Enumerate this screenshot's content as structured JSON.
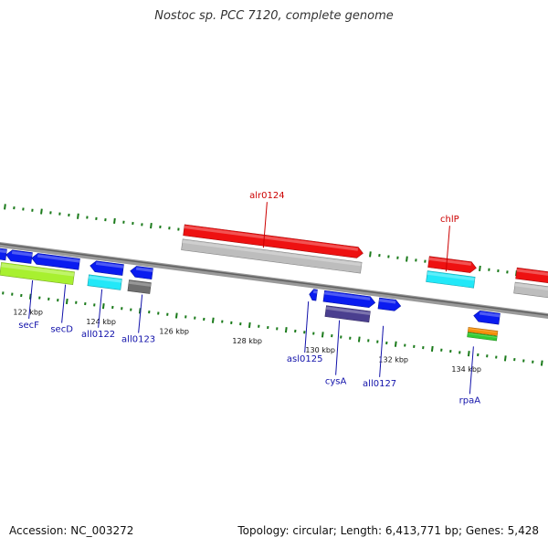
{
  "title": "Nostoc sp. PCC 7120, complete genome",
  "footer": {
    "accession": "Accession: NC_003272",
    "topology": "Topology: circular; Length: 6,413,771 bp; Genes: 5,428"
  },
  "axis": {
    "start_kbp": 121,
    "end_kbp": 136,
    "tick_labels": [
      "122 kbp",
      "124 kbp",
      "126 kbp",
      "128 kbp",
      "130 kbp",
      "132 kbp",
      "134 kbp"
    ]
  },
  "colors": {
    "blue": "#0a1cf0",
    "red": "#ee1111",
    "cyan": "#22e8f8",
    "gray": "#bdbdbd",
    "lime": "#a8f030",
    "darkgray": "#6f6f6f",
    "purple": "#4a3f8f",
    "orange": "#f5900a",
    "green": "#33cc33",
    "label_blue": "#1111aa",
    "label_red": "#cc0000",
    "tick_green": "#1a7a1a"
  },
  "genes": [
    {
      "name": "",
      "start": 120.7,
      "end": 121.2,
      "track": 0,
      "dir": "left",
      "color": "blue"
    },
    {
      "name": "",
      "start": 121.2,
      "end": 121.9,
      "track": 0,
      "dir": "left",
      "color": "blue"
    },
    {
      "name": "",
      "start": 121.9,
      "end": 123.2,
      "track": 0,
      "dir": "left",
      "color": "blue"
    },
    {
      "name": "",
      "start": 121.1,
      "end": 123.1,
      "track": 1,
      "dir": "none",
      "color": "lime",
      "tall": true
    },
    {
      "name": "",
      "start": 123.5,
      "end": 124.4,
      "track": 0,
      "dir": "left",
      "color": "blue"
    },
    {
      "name": "",
      "start": 123.5,
      "end": 124.4,
      "track": 1,
      "dir": "none",
      "color": "cyan"
    },
    {
      "name": "",
      "start": 124.6,
      "end": 125.2,
      "track": 0,
      "dir": "left",
      "color": "blue"
    },
    {
      "name": "",
      "start": 124.6,
      "end": 125.2,
      "track": 1,
      "dir": "none",
      "color": "darkgray"
    },
    {
      "name": "",
      "start": 125.9,
      "end": 130.8,
      "track": -1,
      "dir": "none",
      "color": "gray"
    },
    {
      "name": "",
      "start": 125.9,
      "end": 130.8,
      "track": -2,
      "dir": "right",
      "color": "red"
    },
    {
      "name": "",
      "start": 129.5,
      "end": 129.7,
      "track": 0,
      "dir": "left",
      "color": "blue"
    },
    {
      "name": "",
      "start": 129.9,
      "end": 131.3,
      "track": 0,
      "dir": "right",
      "color": "blue"
    },
    {
      "name": "",
      "start": 130.0,
      "end": 131.2,
      "track": 1,
      "dir": "none",
      "color": "purple"
    },
    {
      "name": "",
      "start": 131.4,
      "end": 132.0,
      "track": 0,
      "dir": "right",
      "color": "blue"
    },
    {
      "name": "",
      "start": 132.6,
      "end": 133.9,
      "track": -1,
      "dir": "none",
      "color": "cyan"
    },
    {
      "name": "",
      "start": 132.6,
      "end": 133.9,
      "track": -2,
      "dir": "right",
      "color": "red"
    },
    {
      "name": "",
      "start": 134.0,
      "end": 134.7,
      "track": 0,
      "dir": "left",
      "color": "blue"
    },
    {
      "name": "",
      "start": 133.9,
      "end": 134.7,
      "track": 1,
      "dir": "none",
      "color": "orange",
      "thin": true
    },
    {
      "name": "",
      "start": 133.9,
      "end": 134.7,
      "track": 1.35,
      "dir": "none",
      "color": "green",
      "thin": true
    },
    {
      "name": "",
      "start": 135.0,
      "end": 136.3,
      "track": -1,
      "dir": "none",
      "color": "gray"
    },
    {
      "name": "",
      "start": 135.0,
      "end": 136.3,
      "track": -2,
      "dir": "right",
      "color": "red"
    }
  ],
  "labels": [
    {
      "text": "secF",
      "kbp": 122.0,
      "track": 1,
      "side": "below",
      "drop": 42,
      "color": "label_blue"
    },
    {
      "text": "secD",
      "kbp": 122.9,
      "track": 1,
      "side": "below",
      "drop": 42,
      "color": "label_blue"
    },
    {
      "text": "all0122",
      "kbp": 123.9,
      "track": 1,
      "side": "below",
      "drop": 42,
      "color": "label_blue"
    },
    {
      "text": "all0123",
      "kbp": 125.0,
      "track": 1,
      "side": "below",
      "drop": 42,
      "color": "label_blue"
    },
    {
      "text": "alr0124",
      "kbp": 128.1,
      "track": -1,
      "side": "above",
      "drop": 50,
      "color": "label_red"
    },
    {
      "text": "asl0125",
      "kbp": 129.5,
      "track": 0,
      "side": "below",
      "drop": 56,
      "color": "label_blue"
    },
    {
      "text": "cysA",
      "kbp": 130.4,
      "track": 1,
      "side": "below",
      "drop": 60,
      "color": "label_blue"
    },
    {
      "text": "all0127",
      "kbp": 131.6,
      "track": 1,
      "side": "below",
      "drop": 56,
      "color": "label_blue"
    },
    {
      "text": "chlP",
      "kbp": 133.1,
      "track": -1,
      "side": "above",
      "drop": 50,
      "color": "label_red"
    },
    {
      "text": "rpaA",
      "kbp": 134.1,
      "track": 1.6,
      "side": "below",
      "drop": 52,
      "color": "label_blue"
    }
  ]
}
